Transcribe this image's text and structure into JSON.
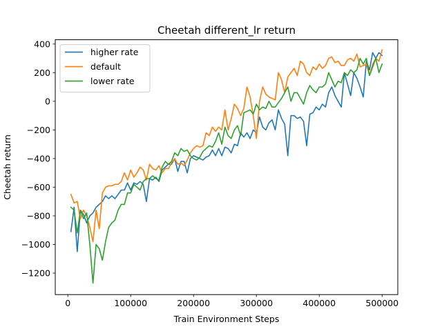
{
  "chart_data": {
    "type": "line",
    "title": "Cheetah different_lr return",
    "xlabel": "Train Environment Steps",
    "ylabel": "Cheetah return",
    "xlim": [
      -20000,
      525000
    ],
    "ylim": [
      -1350,
      430
    ],
    "xticks": [
      0,
      100000,
      200000,
      300000,
      400000,
      500000
    ],
    "yticks": [
      -1200,
      -1000,
      -800,
      -600,
      -400,
      -200,
      0,
      200,
      400
    ],
    "grid": false,
    "legend_position": "top-left",
    "colors": {
      "higher rate": "#1f77b4",
      "default": "#ff7f0e",
      "lower rate": "#2ca02c"
    },
    "series": [
      {
        "name": "higher rate",
        "x": [
          5000,
          10000,
          15000,
          20000,
          25000,
          30000,
          35000,
          40000,
          45000,
          50000,
          55000,
          60000,
          65000,
          70000,
          75000,
          80000,
          85000,
          90000,
          95000,
          100000,
          105000,
          110000,
          115000,
          120000,
          125000,
          130000,
          135000,
          140000,
          145000,
          150000,
          155000,
          160000,
          165000,
          170000,
          175000,
          180000,
          185000,
          190000,
          195000,
          200000,
          205000,
          210000,
          215000,
          220000,
          225000,
          230000,
          235000,
          240000,
          245000,
          250000,
          255000,
          260000,
          265000,
          270000,
          275000,
          280000,
          285000,
          290000,
          295000,
          300000,
          305000,
          310000,
          315000,
          320000,
          325000,
          330000,
          335000,
          340000,
          345000,
          350000,
          355000,
          360000,
          365000,
          370000,
          375000,
          380000,
          385000,
          390000,
          395000,
          400000,
          405000,
          410000,
          415000,
          420000,
          425000,
          430000,
          435000,
          440000,
          445000,
          450000,
          455000,
          460000,
          465000,
          470000,
          475000,
          480000,
          485000,
          490000,
          495000,
          500000
        ],
        "values": [
          -910,
          -740,
          -1050,
          -760,
          -790,
          -850,
          -800,
          -780,
          -740,
          -720,
          -700,
          -660,
          -680,
          -660,
          -680,
          -650,
          -620,
          -620,
          -570,
          -620,
          -570,
          -580,
          -560,
          -580,
          -700,
          -540,
          -550,
          -530,
          -560,
          -480,
          -460,
          -440,
          -440,
          -400,
          -490,
          -420,
          -420,
          -500,
          -400,
          -380,
          -390,
          -400,
          -410,
          -390,
          -380,
          -340,
          -380,
          -330,
          -380,
          -320,
          -330,
          -360,
          -300,
          -310,
          -220,
          -250,
          -220,
          -260,
          -200,
          -220,
          -110,
          -180,
          -200,
          -150,
          -130,
          -200,
          -60,
          -120,
          -160,
          -380,
          -100,
          -100,
          -120,
          -110,
          -140,
          -310,
          -90,
          -80,
          -40,
          -60,
          -20,
          -40,
          60,
          100,
          40,
          0,
          -40,
          200,
          120,
          40,
          200,
          160,
          100,
          30,
          280,
          220,
          340,
          300,
          340,
          320
        ]
      },
      {
        "name": "default",
        "x": [
          5000,
          10000,
          15000,
          20000,
          25000,
          30000,
          35000,
          40000,
          45000,
          50000,
          55000,
          60000,
          65000,
          70000,
          75000,
          80000,
          85000,
          90000,
          95000,
          100000,
          105000,
          110000,
          115000,
          120000,
          125000,
          130000,
          135000,
          140000,
          145000,
          150000,
          155000,
          160000,
          165000,
          170000,
          175000,
          180000,
          185000,
          190000,
          195000,
          200000,
          205000,
          210000,
          215000,
          220000,
          225000,
          230000,
          235000,
          240000,
          245000,
          250000,
          255000,
          260000,
          265000,
          270000,
          275000,
          280000,
          285000,
          290000,
          295000,
          300000,
          305000,
          310000,
          315000,
          320000,
          325000,
          330000,
          335000,
          340000,
          345000,
          350000,
          355000,
          360000,
          365000,
          370000,
          375000,
          380000,
          385000,
          390000,
          395000,
          400000,
          405000,
          410000,
          415000,
          420000,
          425000,
          430000,
          435000,
          440000,
          445000,
          450000,
          455000,
          460000,
          465000,
          470000,
          475000,
          480000,
          485000,
          490000,
          495000,
          500000
        ],
        "values": [
          -650,
          -710,
          -700,
          -820,
          -760,
          -800,
          -880,
          -980,
          -760,
          -890,
          -640,
          -600,
          -590,
          -590,
          -580,
          -580,
          -560,
          -500,
          -550,
          -480,
          -530,
          -500,
          -460,
          -480,
          -550,
          -440,
          -470,
          -480,
          -450,
          -500,
          -470,
          -470,
          -430,
          -400,
          -440,
          -430,
          -450,
          -410,
          -360,
          -330,
          -310,
          -320,
          -310,
          -220,
          -240,
          -180,
          -210,
          -180,
          -200,
          -60,
          -200,
          -120,
          -20,
          -50,
          -100,
          -50,
          100,
          30,
          -100,
          -260,
          0,
          100,
          50,
          30,
          20,
          10,
          200,
          150,
          60,
          170,
          200,
          230,
          180,
          280,
          260,
          200,
          180,
          240,
          220,
          260,
          230,
          250,
          300,
          310,
          270,
          280,
          250,
          250,
          290,
          300,
          280,
          330,
          240,
          250,
          260,
          180,
          260,
          300,
          280,
          360
        ]
      },
      {
        "name": "lower rate",
        "x": [
          5000,
          10000,
          15000,
          20000,
          25000,
          30000,
          35000,
          40000,
          45000,
          50000,
          55000,
          60000,
          65000,
          70000,
          75000,
          80000,
          85000,
          90000,
          95000,
          100000,
          105000,
          110000,
          115000,
          120000,
          125000,
          130000,
          135000,
          140000,
          145000,
          150000,
          155000,
          160000,
          165000,
          170000,
          175000,
          180000,
          185000,
          190000,
          195000,
          200000,
          205000,
          210000,
          215000,
          220000,
          225000,
          230000,
          235000,
          240000,
          245000,
          250000,
          255000,
          260000,
          265000,
          270000,
          275000,
          280000,
          285000,
          290000,
          295000,
          300000,
          305000,
          310000,
          315000,
          320000,
          325000,
          330000,
          335000,
          340000,
          345000,
          350000,
          355000,
          360000,
          365000,
          370000,
          375000,
          380000,
          385000,
          390000,
          395000,
          400000,
          405000,
          410000,
          415000,
          420000,
          425000,
          430000,
          435000,
          440000,
          445000,
          450000,
          455000,
          460000,
          465000,
          470000,
          475000,
          480000,
          485000,
          490000,
          495000,
          500000
        ],
        "values": [
          -740,
          -760,
          -920,
          -760,
          -820,
          -780,
          -1000,
          -1270,
          -1000,
          -1030,
          -1110,
          -980,
          -880,
          -850,
          -830,
          -760,
          -720,
          -720,
          -640,
          -640,
          -580,
          -600,
          -620,
          -560,
          -540,
          -540,
          -520,
          -540,
          -550,
          -460,
          -420,
          -440,
          -420,
          -360,
          -380,
          -330,
          -350,
          -340,
          -380,
          -400,
          -410,
          -390,
          -350,
          -330,
          -310,
          -320,
          -280,
          -220,
          -300,
          -180,
          -240,
          -260,
          -200,
          -170,
          -240,
          -80,
          -70,
          -60,
          -90,
          -20,
          -60,
          -40,
          -50,
          0,
          -40,
          -40,
          -10,
          20,
          60,
          100,
          0,
          60,
          60,
          20,
          -20,
          60,
          110,
          80,
          60,
          100,
          100,
          120,
          200,
          150,
          100,
          140,
          130,
          200,
          180,
          220,
          200,
          220,
          300,
          260,
          300,
          180,
          240,
          300,
          200,
          260
        ]
      }
    ]
  }
}
